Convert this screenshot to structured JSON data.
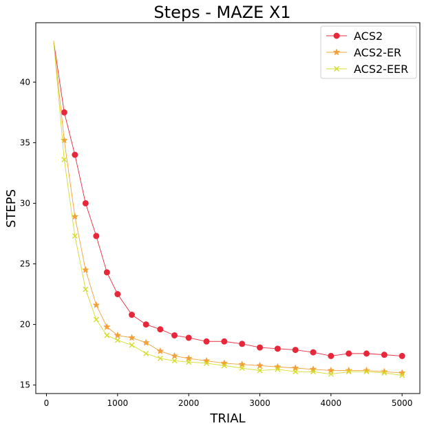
{
  "chart_data": {
    "type": "line",
    "title": "Steps - MAZE X1",
    "xlabel": "TRIAL",
    "ylabel": "STEPS",
    "xlim": [
      -150,
      5250
    ],
    "ylim": [
      14.3,
      44.9
    ],
    "xticks": [
      0,
      1000,
      2000,
      3000,
      4000,
      5000
    ],
    "xtick_labels": [
      "0",
      "1000",
      "2000",
      "3000",
      "4000",
      "5000"
    ],
    "yticks": [
      15,
      20,
      25,
      30,
      35,
      40
    ],
    "ytick_labels": [
      "15",
      "20",
      "25",
      "30",
      "35",
      "40"
    ],
    "grid": false,
    "legend_position": "top-right",
    "x": [
      100,
      250,
      400,
      550,
      700,
      850,
      1000,
      1200,
      1400,
      1600,
      1800,
      2000,
      2250,
      2500,
      2750,
      3000,
      3250,
      3500,
      3750,
      4000,
      4250,
      4500,
      4750,
      5000
    ],
    "series": [
      {
        "name": "ACS2",
        "color": "#e8283a",
        "marker": "circle",
        "values": [
          43.4,
          37.5,
          34.0,
          30.0,
          27.3,
          24.3,
          22.5,
          20.8,
          20.0,
          19.6,
          19.1,
          18.9,
          18.6,
          18.6,
          18.4,
          18.1,
          18.0,
          17.9,
          17.7,
          17.4,
          17.6,
          17.6,
          17.5,
          17.4
        ]
      },
      {
        "name": "ACS2-ER",
        "color": "#f5a13a",
        "marker": "star",
        "values": [
          43.4,
          35.2,
          28.9,
          24.5,
          21.6,
          19.8,
          19.1,
          18.9,
          18.5,
          17.8,
          17.4,
          17.2,
          17.0,
          16.8,
          16.7,
          16.6,
          16.5,
          16.4,
          16.3,
          16.2,
          16.2,
          16.2,
          16.1,
          16.0
        ]
      },
      {
        "name": "ACS2-EER",
        "color": "#d4dc2a",
        "marker": "x",
        "values": [
          43.4,
          33.6,
          27.3,
          22.9,
          20.4,
          19.1,
          18.7,
          18.3,
          17.6,
          17.2,
          17.0,
          16.9,
          16.8,
          16.6,
          16.4,
          16.2,
          16.3,
          16.1,
          16.1,
          15.9,
          16.1,
          16.1,
          16.0,
          15.8
        ]
      }
    ]
  }
}
